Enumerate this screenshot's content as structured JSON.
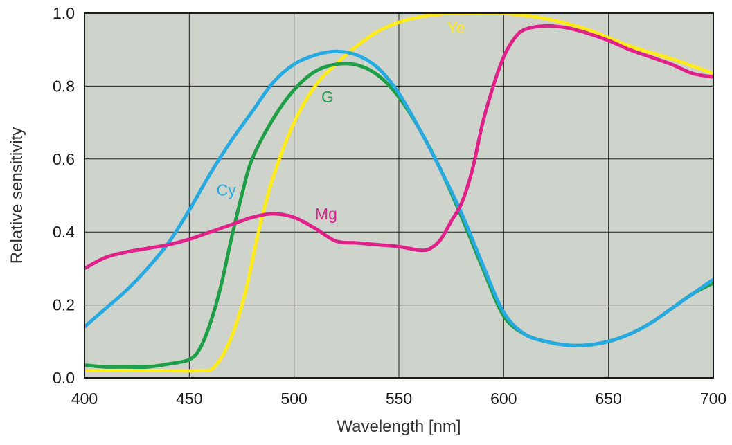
{
  "chart_data": {
    "type": "line",
    "title": "",
    "xlabel": "Wavelength [nm]",
    "ylabel": "Relative sensitivity",
    "xlim": [
      400,
      700
    ],
    "ylim": [
      0,
      1.0
    ],
    "x_ticks": [
      400,
      450,
      500,
      550,
      600,
      650,
      700
    ],
    "x_tick_labels": [
      "400",
      "450",
      "500",
      "550",
      "600",
      "650",
      "700"
    ],
    "y_ticks": [
      0,
      0.2,
      0.4,
      0.6,
      0.8,
      1.0
    ],
    "y_tick_labels": [
      "0.0",
      "0.2",
      "0.4",
      "0.6",
      "0.8",
      "1.0"
    ],
    "grid": true,
    "legend": "inline labels",
    "plot_background": "#ced3cc",
    "series": [
      {
        "name": "Ye",
        "color": "#ffec1a",
        "label_at": [
          573,
          0.945
        ],
        "points": [
          [
            400,
            0.02
          ],
          [
            420,
            0.02
          ],
          [
            440,
            0.02
          ],
          [
            455,
            0.02
          ],
          [
            462,
            0.03
          ],
          [
            470,
            0.11
          ],
          [
            477,
            0.24
          ],
          [
            483,
            0.4
          ],
          [
            490,
            0.55
          ],
          [
            500,
            0.7
          ],
          [
            510,
            0.8
          ],
          [
            520,
            0.86
          ],
          [
            530,
            0.91
          ],
          [
            540,
            0.95
          ],
          [
            550,
            0.975
          ],
          [
            560,
            0.99
          ],
          [
            570,
            0.998
          ],
          [
            580,
            1.0
          ],
          [
            600,
            1.0
          ],
          [
            620,
            0.985
          ],
          [
            640,
            0.955
          ],
          [
            660,
            0.91
          ],
          [
            680,
            0.875
          ],
          [
            690,
            0.855
          ],
          [
            700,
            0.835
          ]
        ]
      },
      {
        "name": "G",
        "color": "#1e9e46",
        "label_at": [
          513,
          0.755
        ],
        "points": [
          [
            400,
            0.035
          ],
          [
            410,
            0.03
          ],
          [
            420,
            0.03
          ],
          [
            430,
            0.03
          ],
          [
            440,
            0.038
          ],
          [
            450,
            0.05
          ],
          [
            455,
            0.08
          ],
          [
            460,
            0.15
          ],
          [
            465,
            0.25
          ],
          [
            470,
            0.38
          ],
          [
            475,
            0.5
          ],
          [
            480,
            0.6
          ],
          [
            490,
            0.71
          ],
          [
            500,
            0.79
          ],
          [
            510,
            0.84
          ],
          [
            520,
            0.86
          ],
          [
            530,
            0.858
          ],
          [
            540,
            0.83
          ],
          [
            550,
            0.77
          ],
          [
            560,
            0.68
          ],
          [
            570,
            0.57
          ],
          [
            580,
            0.44
          ],
          [
            590,
            0.3
          ],
          [
            600,
            0.17
          ],
          [
            610,
            0.12
          ],
          [
            620,
            0.1
          ],
          [
            630,
            0.09
          ],
          [
            640,
            0.09
          ],
          [
            650,
            0.1
          ],
          [
            660,
            0.12
          ],
          [
            670,
            0.15
          ],
          [
            680,
            0.19
          ],
          [
            690,
            0.23
          ],
          [
            700,
            0.26
          ]
        ]
      },
      {
        "name": "Cy",
        "color": "#27a9e1",
        "label_at": [
          463,
          0.5
        ],
        "points": [
          [
            400,
            0.14
          ],
          [
            410,
            0.19
          ],
          [
            420,
            0.24
          ],
          [
            430,
            0.3
          ],
          [
            440,
            0.37
          ],
          [
            450,
            0.46
          ],
          [
            460,
            0.56
          ],
          [
            470,
            0.65
          ],
          [
            480,
            0.73
          ],
          [
            490,
            0.81
          ],
          [
            500,
            0.86
          ],
          [
            510,
            0.885
          ],
          [
            520,
            0.895
          ],
          [
            530,
            0.885
          ],
          [
            540,
            0.85
          ],
          [
            550,
            0.78
          ],
          [
            560,
            0.68
          ],
          [
            570,
            0.57
          ],
          [
            580,
            0.45
          ],
          [
            590,
            0.31
          ],
          [
            600,
            0.18
          ],
          [
            610,
            0.12
          ],
          [
            620,
            0.1
          ],
          [
            630,
            0.09
          ],
          [
            640,
            0.09
          ],
          [
            650,
            0.1
          ],
          [
            660,
            0.12
          ],
          [
            670,
            0.15
          ],
          [
            680,
            0.19
          ],
          [
            690,
            0.23
          ],
          [
            700,
            0.27
          ]
        ]
      },
      {
        "name": "Mg",
        "color": "#e0218a",
        "label_at": [
          510,
          0.435
        ],
        "points": [
          [
            400,
            0.3
          ],
          [
            410,
            0.33
          ],
          [
            420,
            0.345
          ],
          [
            430,
            0.355
          ],
          [
            440,
            0.365
          ],
          [
            450,
            0.38
          ],
          [
            460,
            0.4
          ],
          [
            470,
            0.42
          ],
          [
            480,
            0.44
          ],
          [
            490,
            0.45
          ],
          [
            500,
            0.44
          ],
          [
            510,
            0.41
          ],
          [
            520,
            0.375
          ],
          [
            530,
            0.37
          ],
          [
            540,
            0.365
          ],
          [
            550,
            0.36
          ],
          [
            560,
            0.35
          ],
          [
            565,
            0.355
          ],
          [
            570,
            0.38
          ],
          [
            575,
            0.43
          ],
          [
            580,
            0.48
          ],
          [
            585,
            0.57
          ],
          [
            590,
            0.7
          ],
          [
            595,
            0.8
          ],
          [
            600,
            0.88
          ],
          [
            605,
            0.93
          ],
          [
            610,
            0.955
          ],
          [
            620,
            0.965
          ],
          [
            630,
            0.96
          ],
          [
            640,
            0.945
          ],
          [
            650,
            0.925
          ],
          [
            660,
            0.9
          ],
          [
            670,
            0.88
          ],
          [
            680,
            0.86
          ],
          [
            690,
            0.835
          ],
          [
            700,
            0.825
          ]
        ]
      }
    ]
  }
}
